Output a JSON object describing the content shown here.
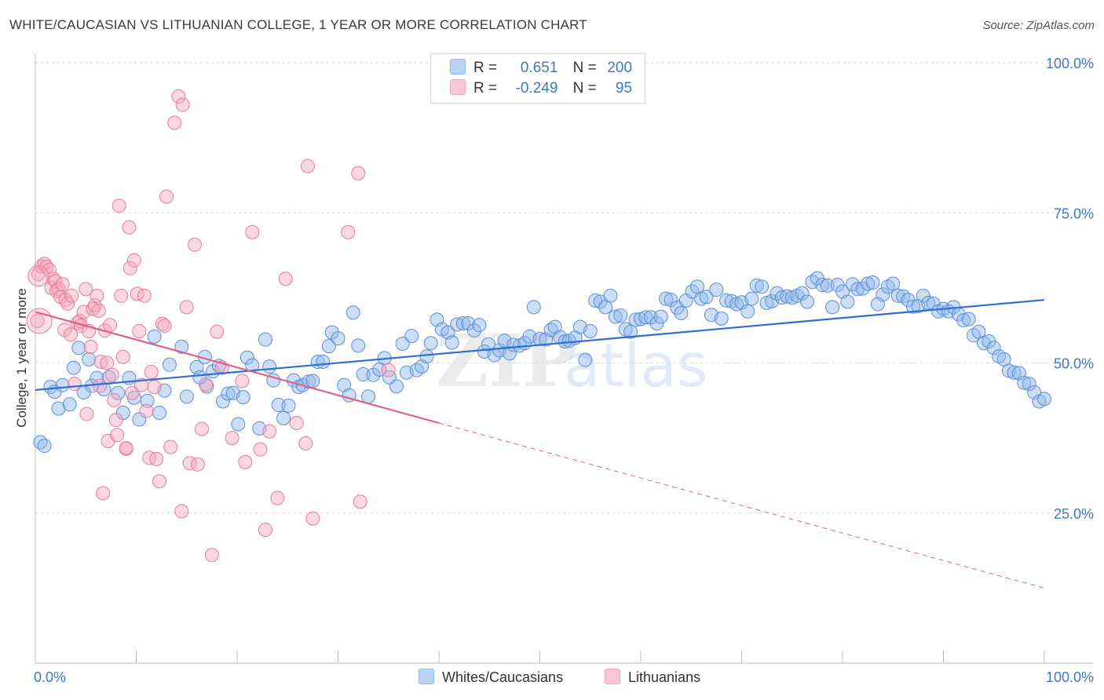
{
  "header": {
    "title": "WHITE/CAUCASIAN VS LITHUANIAN COLLEGE, 1 YEAR OR MORE CORRELATION CHART",
    "source": "Source: ZipAtlas.com"
  },
  "legend_top": {
    "rows": [
      {
        "r_label": "R =",
        "r_value": "0.651",
        "n_label": "N =",
        "n_value": "200",
        "color": "#8db5ea"
      },
      {
        "r_label": "R =",
        "r_value": "-0.249",
        "n_label": "N =",
        "n_value": "95",
        "color": "#f4a6bd"
      }
    ]
  },
  "watermark": {
    "zip": "ZIP",
    "atlas": "atlas"
  },
  "chart_data": {
    "type": "scatter",
    "title": "WHITE/CAUCASIAN VS LITHUANIAN COLLEGE, 1 YEAR OR MORE CORRELATION CHART",
    "ylabel": "College, 1 year or more",
    "xlim": [
      0,
      100
    ],
    "ylim": [
      0,
      100
    ],
    "x_tick_labels": [
      "0.0%",
      "100.0%"
    ],
    "y_tick_labels": [
      "25.0%",
      "50.0%",
      "75.0%",
      "100.0%"
    ],
    "y_ticks": [
      25,
      50,
      75,
      100
    ],
    "grid": true,
    "legend_position": "bottom",
    "series": [
      {
        "name": "Whites/Caucasians",
        "color": "#8db5ea",
        "stroke": "#5b8fd6",
        "trend": {
          "x0": 0,
          "y0": 45.5,
          "x1": 100,
          "y1": 60.5,
          "color": "#2f6fd0"
        },
        "points": [
          [
            0.5,
            36.8
          ],
          [
            0.9,
            36.2
          ],
          [
            1.5,
            46.0
          ],
          [
            1.9,
            45.2
          ],
          [
            2.3,
            42.4
          ],
          [
            2.7,
            46.3
          ],
          [
            3.4,
            43.1
          ],
          [
            3.8,
            49.2
          ],
          [
            4.3,
            52.5
          ],
          [
            4.8,
            45.1
          ],
          [
            5.3,
            50.6
          ],
          [
            5.6,
            46.2
          ],
          [
            6.1,
            47.5
          ],
          [
            6.8,
            45.6
          ],
          [
            7.3,
            47.6
          ],
          [
            8.2,
            45.0
          ],
          [
            8.7,
            41.7
          ],
          [
            9.3,
            47.5
          ],
          [
            9.8,
            44.2
          ],
          [
            10.3,
            40.6
          ],
          [
            11.1,
            43.7
          ],
          [
            11.8,
            54.4
          ],
          [
            12.3,
            41.7
          ],
          [
            12.8,
            45.4
          ],
          [
            13.3,
            49.7
          ],
          [
            14.5,
            52.7
          ],
          [
            15.0,
            44.4
          ],
          [
            16.0,
            49.3
          ],
          [
            16.3,
            47.6
          ],
          [
            16.8,
            51.0
          ],
          [
            17.0,
            46.1
          ],
          [
            17.6,
            48.6
          ],
          [
            18.2,
            49.5
          ],
          [
            18.6,
            43.6
          ],
          [
            19.1,
            44.9
          ],
          [
            19.6,
            45.0
          ],
          [
            20.1,
            39.8
          ],
          [
            20.6,
            44.3
          ],
          [
            21.0,
            50.9
          ],
          [
            21.5,
            49.6
          ],
          [
            22.2,
            39.1
          ],
          [
            22.8,
            53.9
          ],
          [
            23.2,
            49.4
          ],
          [
            23.6,
            47.1
          ],
          [
            24.1,
            43.0
          ],
          [
            24.6,
            40.8
          ],
          [
            25.1,
            42.9
          ],
          [
            25.6,
            47.1
          ],
          [
            26.1,
            46.0
          ],
          [
            26.5,
            46.3
          ],
          [
            27.1,
            46.9
          ],
          [
            27.5,
            47.0
          ],
          [
            28.0,
            50.2
          ],
          [
            28.5,
            50.2
          ],
          [
            29.1,
            52.8
          ],
          [
            29.4,
            55.1
          ],
          [
            30.0,
            54.1
          ],
          [
            30.6,
            46.3
          ],
          [
            31.1,
            44.6
          ],
          [
            31.5,
            58.4
          ],
          [
            32.0,
            52.9
          ],
          [
            32.5,
            48.1
          ],
          [
            33.0,
            44.4
          ],
          [
            33.5,
            48.0
          ],
          [
            34.1,
            48.9
          ],
          [
            34.6,
            50.8
          ],
          [
            35.1,
            47.6
          ],
          [
            35.8,
            46.1
          ],
          [
            36.4,
            53.2
          ],
          [
            36.8,
            48.4
          ],
          [
            37.3,
            54.5
          ],
          [
            37.8,
            48.8
          ],
          [
            38.3,
            49.4
          ],
          [
            38.8,
            51.1
          ],
          [
            39.2,
            53.3
          ],
          [
            39.8,
            57.2
          ],
          [
            40.3,
            55.6
          ],
          [
            40.9,
            55.1
          ],
          [
            41.3,
            53.4
          ],
          [
            41.8,
            56.4
          ],
          [
            42.4,
            56.6
          ],
          [
            42.9,
            56.6
          ],
          [
            43.5,
            55.4
          ],
          [
            44.0,
            56.3
          ],
          [
            44.5,
            51.9
          ],
          [
            44.9,
            53.1
          ],
          [
            45.5,
            51.3
          ],
          [
            46.0,
            52.1
          ],
          [
            46.5,
            53.7
          ],
          [
            47.0,
            51.6
          ],
          [
            47.4,
            53.0
          ],
          [
            48.0,
            52.9
          ],
          [
            48.5,
            53.3
          ],
          [
            49.0,
            54.4
          ],
          [
            49.4,
            59.3
          ],
          [
            50.0,
            54.0
          ],
          [
            50.6,
            53.9
          ],
          [
            51.1,
            55.5
          ],
          [
            51.5,
            56.0
          ],
          [
            52.0,
            54.3
          ],
          [
            52.5,
            53.6
          ],
          [
            52.9,
            53.7
          ],
          [
            53.5,
            54.2
          ],
          [
            54.0,
            56.0
          ],
          [
            54.5,
            50.5
          ],
          [
            55.0,
            55.3
          ],
          [
            55.5,
            60.4
          ],
          [
            56.0,
            60.2
          ],
          [
            56.5,
            59.3
          ],
          [
            57.0,
            61.2
          ],
          [
            57.5,
            57.7
          ],
          [
            58.0,
            57.9
          ],
          [
            58.5,
            55.6
          ],
          [
            59.0,
            55.2
          ],
          [
            59.5,
            57.2
          ],
          [
            60.0,
            57.3
          ],
          [
            60.5,
            57.6
          ],
          [
            61.0,
            57.6
          ],
          [
            61.6,
            56.6
          ],
          [
            62.0,
            57.7
          ],
          [
            62.5,
            60.7
          ],
          [
            63.0,
            60.5
          ],
          [
            63.6,
            59.2
          ],
          [
            64.0,
            58.3
          ],
          [
            64.5,
            60.4
          ],
          [
            65.1,
            61.9
          ],
          [
            65.6,
            62.7
          ],
          [
            66.0,
            60.7
          ],
          [
            66.5,
            61.0
          ],
          [
            67.0,
            58.0
          ],
          [
            67.5,
            62.2
          ],
          [
            68.0,
            57.4
          ],
          [
            68.5,
            60.4
          ],
          [
            69.0,
            60.3
          ],
          [
            69.5,
            59.8
          ],
          [
            70.0,
            60.1
          ],
          [
            70.6,
            58.6
          ],
          [
            71.0,
            60.7
          ],
          [
            71.5,
            62.9
          ],
          [
            72.0,
            62.7
          ],
          [
            72.5,
            60.0
          ],
          [
            73.0,
            60.3
          ],
          [
            73.5,
            61.6
          ],
          [
            74.0,
            60.9
          ],
          [
            74.5,
            61.1
          ],
          [
            75.0,
            60.9
          ],
          [
            75.5,
            61.2
          ],
          [
            76.0,
            61.6
          ],
          [
            76.5,
            60.2
          ],
          [
            77.0,
            63.5
          ],
          [
            77.5,
            64.1
          ],
          [
            78.0,
            63.0
          ],
          [
            78.5,
            62.9
          ],
          [
            79.0,
            59.3
          ],
          [
            79.5,
            63.0
          ],
          [
            80.0,
            61.9
          ],
          [
            80.5,
            60.2
          ],
          [
            81.0,
            63.1
          ],
          [
            81.5,
            62.3
          ],
          [
            82.0,
            62.4
          ],
          [
            82.5,
            63.2
          ],
          [
            83.0,
            63.4
          ],
          [
            83.5,
            59.8
          ],
          [
            84.0,
            61.4
          ],
          [
            84.5,
            62.7
          ],
          [
            85.0,
            63.2
          ],
          [
            85.5,
            61.2
          ],
          [
            86.0,
            61.1
          ],
          [
            86.5,
            60.5
          ],
          [
            87.0,
            59.4
          ],
          [
            87.5,
            59.5
          ],
          [
            88.0,
            61.2
          ],
          [
            88.5,
            60.0
          ],
          [
            89.0,
            59.9
          ],
          [
            89.5,
            58.6
          ],
          [
            90.0,
            59.0
          ],
          [
            90.5,
            58.6
          ],
          [
            91.0,
            59.3
          ],
          [
            91.5,
            58.1
          ],
          [
            92.0,
            57.1
          ],
          [
            92.5,
            57.3
          ],
          [
            93.0,
            54.6
          ],
          [
            93.5,
            55.2
          ],
          [
            94.0,
            53.3
          ],
          [
            94.5,
            53.6
          ],
          [
            95.0,
            52.5
          ],
          [
            95.5,
            51.1
          ],
          [
            96.0,
            50.6
          ],
          [
            96.5,
            48.7
          ],
          [
            97.0,
            48.4
          ],
          [
            97.5,
            48.3
          ],
          [
            98.0,
            46.7
          ],
          [
            98.5,
            46.5
          ],
          [
            99.0,
            45.1
          ],
          [
            99.5,
            43.6
          ],
          [
            100.0,
            44.0
          ]
        ]
      },
      {
        "name": "Lithuanians",
        "color": "#f4a6bd",
        "stroke": "#e57c9d",
        "trend": {
          "x0": 0,
          "y0": 58.5,
          "x1": 40,
          "y1": 40.0,
          "color": "#e0608a",
          "dash_x1": 100,
          "dash_y1": 12.5
        },
        "points": [
          [
            0.2,
            57.0
          ],
          [
            0.3,
            64.8
          ],
          [
            0.6,
            66.1
          ],
          [
            0.9,
            66.5
          ],
          [
            1.1,
            66.0
          ],
          [
            1.4,
            65.5
          ],
          [
            1.6,
            62.5
          ],
          [
            1.8,
            64.0
          ],
          [
            2.0,
            63.6
          ],
          [
            2.1,
            62.0
          ],
          [
            2.3,
            62.3
          ],
          [
            2.5,
            61.0
          ],
          [
            2.7,
            63.1
          ],
          [
            2.9,
            55.5
          ],
          [
            3.0,
            60.5
          ],
          [
            3.2,
            59.9
          ],
          [
            3.5,
            54.7
          ],
          [
            3.6,
            61.2
          ],
          [
            3.9,
            46.5
          ],
          [
            4.2,
            56.7
          ],
          [
            4.4,
            57.0
          ],
          [
            4.5,
            56.2
          ],
          [
            4.8,
            58.5
          ],
          [
            5.0,
            62.3
          ],
          [
            5.1,
            41.5
          ],
          [
            5.3,
            55.3
          ],
          [
            5.5,
            52.7
          ],
          [
            5.7,
            59.0
          ],
          [
            5.9,
            59.6
          ],
          [
            6.1,
            61.2
          ],
          [
            6.3,
            58.7
          ],
          [
            6.5,
            50.2
          ],
          [
            6.7,
            28.3
          ],
          [
            6.9,
            55.4
          ],
          [
            7.1,
            50.0
          ],
          [
            7.2,
            37.0
          ],
          [
            7.4,
            56.3
          ],
          [
            7.6,
            48.0
          ],
          [
            7.8,
            43.8
          ],
          [
            8.0,
            40.5
          ],
          [
            8.1,
            38.0
          ],
          [
            8.3,
            76.2
          ],
          [
            8.5,
            61.2
          ],
          [
            8.7,
            51.0
          ],
          [
            9.0,
            35.7
          ],
          [
            9.3,
            72.6
          ],
          [
            9.4,
            65.8
          ],
          [
            9.6,
            45.0
          ],
          [
            9.8,
            67.1
          ],
          [
            10.1,
            61.5
          ],
          [
            10.3,
            55.3
          ],
          [
            10.5,
            46.3
          ],
          [
            10.8,
            61.2
          ],
          [
            11.0,
            42.0
          ],
          [
            11.3,
            34.2
          ],
          [
            11.5,
            48.5
          ],
          [
            11.8,
            46.0
          ],
          [
            12.0,
            34.0
          ],
          [
            12.3,
            30.3
          ],
          [
            12.6,
            56.5
          ],
          [
            13.0,
            77.7
          ],
          [
            13.4,
            36.0
          ],
          [
            13.8,
            90.0
          ],
          [
            14.2,
            94.4
          ],
          [
            14.5,
            25.3
          ],
          [
            14.6,
            93.0
          ],
          [
            15.0,
            59.3
          ],
          [
            15.3,
            33.3
          ],
          [
            15.8,
            69.7
          ],
          [
            16.1,
            33.1
          ],
          [
            16.5,
            39.0
          ],
          [
            16.9,
            46.4
          ],
          [
            17.5,
            18.0
          ],
          [
            18.0,
            55.2
          ],
          [
            18.5,
            49.2
          ],
          [
            19.5,
            37.5
          ],
          [
            20.8,
            33.5
          ],
          [
            21.5,
            71.8
          ],
          [
            22.3,
            35.6
          ],
          [
            22.8,
            22.2
          ],
          [
            23.2,
            38.6
          ],
          [
            24.0,
            27.5
          ],
          [
            24.8,
            64.0
          ],
          [
            25.9,
            40.0
          ],
          [
            26.8,
            36.6
          ],
          [
            27.0,
            82.8
          ],
          [
            27.5,
            24.1
          ],
          [
            31.0,
            71.8
          ],
          [
            32.0,
            81.6
          ],
          [
            32.2,
            26.9
          ],
          [
            35.0,
            48.8
          ],
          [
            20.5,
            47.0
          ],
          [
            12.8,
            56.2
          ],
          [
            9.0,
            35.8
          ],
          [
            6.4,
            46.2
          ]
        ]
      }
    ]
  },
  "bottom_legend": {
    "items": [
      {
        "label": "Whites/Caucasians",
        "color": "#b9d2f5",
        "border": "#8db5ea"
      },
      {
        "label": "Lithuanians",
        "color": "#f9c6d5",
        "border": "#f4a6bd"
      }
    ]
  }
}
